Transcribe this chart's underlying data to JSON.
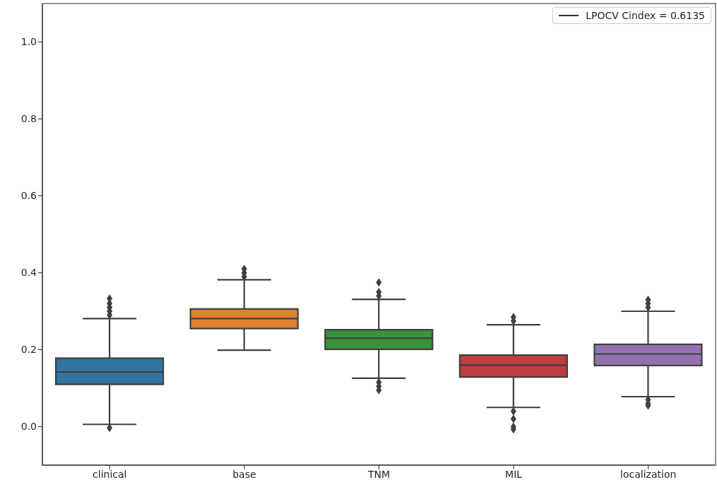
{
  "chart_data": {
    "type": "box",
    "categories": [
      "clinical",
      "base",
      "TNM",
      "MIL",
      "localization"
    ],
    "colors": [
      "#3274a1",
      "#e1812c",
      "#3a923a",
      "#c03d3e",
      "#9372b2"
    ],
    "boxes": [
      {
        "low": 0.006,
        "q1": 0.11,
        "median": 0.142,
        "q3": 0.178,
        "high": 0.281,
        "outliers": [
          -0.003,
          0.29,
          0.3,
          0.31,
          0.32,
          0.333
        ]
      },
      {
        "low": 0.199,
        "q1": 0.255,
        "median": 0.281,
        "q3": 0.306,
        "high": 0.382,
        "outliers": [
          0.39,
          0.4,
          0.41
        ]
      },
      {
        "low": 0.126,
        "q1": 0.201,
        "median": 0.23,
        "q3": 0.252,
        "high": 0.331,
        "outliers": [
          0.095,
          0.105,
          0.115,
          0.34,
          0.35,
          0.375
        ]
      },
      {
        "low": 0.05,
        "q1": 0.129,
        "median": 0.16,
        "q3": 0.186,
        "high": 0.265,
        "outliers": [
          -0.007,
          0.0,
          0.02,
          0.04,
          0.275,
          0.285
        ]
      },
      {
        "low": 0.078,
        "q1": 0.159,
        "median": 0.189,
        "q3": 0.214,
        "high": 0.3,
        "outliers": [
          0.055,
          0.06,
          0.07,
          0.31,
          0.32,
          0.33
        ]
      }
    ],
    "series": [
      {
        "type": "line",
        "name": "LPOCV Cindex = 0.6135",
        "color": "#333333",
        "values": [
          null,
          null,
          null,
          null,
          null
        ]
      }
    ],
    "ylim": [
      -0.1,
      1.1
    ],
    "yticks": [
      {
        "value": 0,
        "label": "0.0"
      },
      {
        "value": 0.2,
        "label": "0.2"
      },
      {
        "value": 0.4,
        "label": "0.4"
      },
      {
        "value": 0.6,
        "label": "0.6"
      },
      {
        "value": 0.8,
        "label": "0.8"
      },
      {
        "value": 1,
        "label": "1.0"
      }
    ],
    "legend": "top right"
  }
}
